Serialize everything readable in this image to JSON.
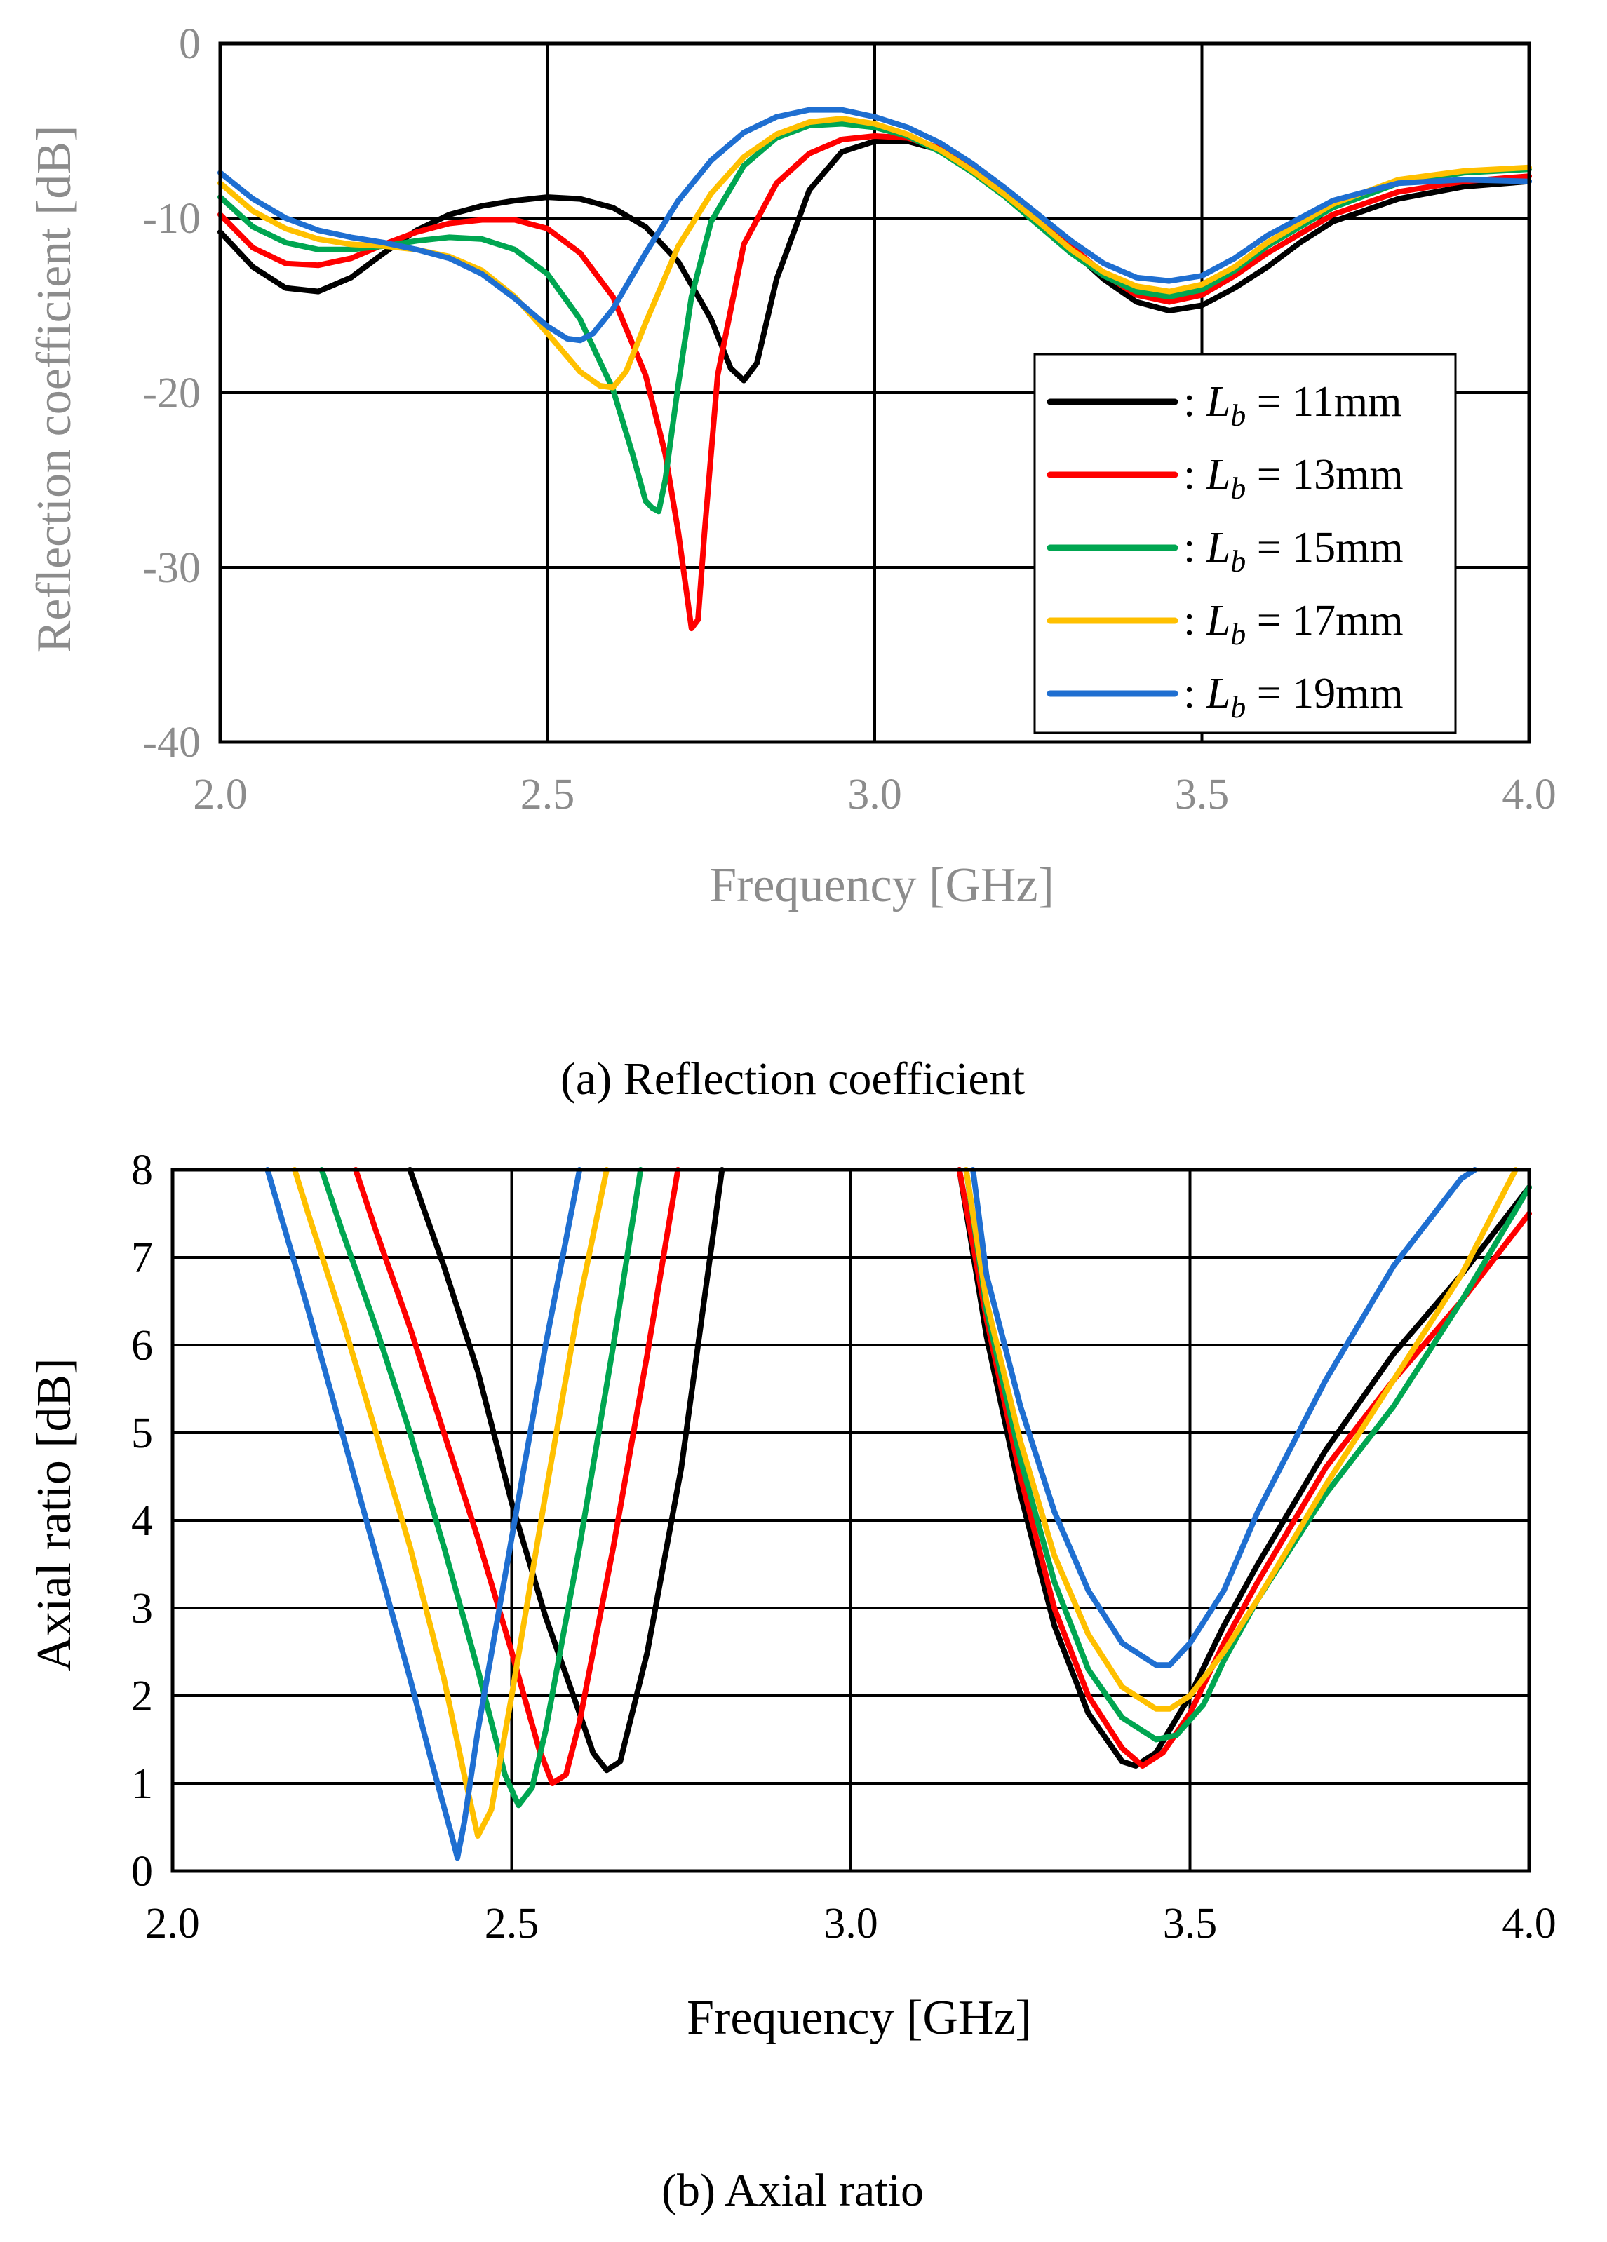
{
  "chart_data": [
    {
      "type": "line",
      "caption": "(a) Reflection coefficient",
      "xlabel": "Frequency [GHz]",
      "ylabel": "Reflection coefficient [dB]",
      "xlim": [
        2.0,
        4.0
      ],
      "ylim": [
        -40,
        0
      ],
      "xticks": [
        "2.0",
        "2.5",
        "3.0",
        "3.5",
        "4.0"
      ],
      "yticks": [
        "0",
        "-10",
        "-20",
        "-30",
        "-40"
      ],
      "grid": true,
      "legend": "bottom-right",
      "series": [
        {
          "name": ": Lb = 11mm",
          "legend": {
            "prefix": ": ",
            "var": "L",
            "sub": "b",
            "suffix": " = 11mm"
          },
          "color": "#000000",
          "x": [
            2.0,
            2.05,
            2.1,
            2.15,
            2.2,
            2.25,
            2.3,
            2.35,
            2.4,
            2.45,
            2.5,
            2.55,
            2.6,
            2.65,
            2.7,
            2.75,
            2.78,
            2.8,
            2.82,
            2.85,
            2.9,
            2.95,
            3.0,
            3.05,
            3.1,
            3.15,
            3.2,
            3.25,
            3.3,
            3.35,
            3.4,
            3.45,
            3.5,
            3.55,
            3.6,
            3.65,
            3.7,
            3.8,
            3.9,
            4.0
          ],
          "y": [
            -10.8,
            -12.8,
            -14.0,
            -14.2,
            -13.4,
            -12.0,
            -10.7,
            -9.8,
            -9.3,
            -9.0,
            -8.8,
            -8.9,
            -9.4,
            -10.5,
            -12.5,
            -15.8,
            -18.6,
            -19.3,
            -18.3,
            -13.5,
            -8.4,
            -6.2,
            -5.6,
            -5.6,
            -6.1,
            -7.2,
            -8.6,
            -10.1,
            -11.8,
            -13.5,
            -14.8,
            -15.3,
            -15.0,
            -14.0,
            -12.8,
            -11.4,
            -10.2,
            -8.9,
            -8.2,
            -7.9
          ]
        },
        {
          "name": ": Lb = 13mm",
          "legend": {
            "prefix": ": ",
            "var": "L",
            "sub": "b",
            "suffix": " = 13mm"
          },
          "color": "#ff0000",
          "x": [
            2.0,
            2.05,
            2.1,
            2.15,
            2.2,
            2.25,
            2.3,
            2.35,
            2.4,
            2.45,
            2.5,
            2.55,
            2.6,
            2.65,
            2.68,
            2.7,
            2.72,
            2.73,
            2.74,
            2.76,
            2.8,
            2.85,
            2.9,
            2.95,
            3.0,
            3.05,
            3.1,
            3.15,
            3.2,
            3.25,
            3.3,
            3.35,
            3.4,
            3.45,
            3.5,
            3.55,
            3.6,
            3.7,
            3.8,
            3.9,
            4.0
          ],
          "y": [
            -9.8,
            -11.7,
            -12.6,
            -12.7,
            -12.3,
            -11.5,
            -10.8,
            -10.3,
            -10.1,
            -10.1,
            -10.6,
            -12.0,
            -14.5,
            -19.0,
            -23.5,
            -28.0,
            -33.5,
            -33.0,
            -28.0,
            -19.0,
            -11.5,
            -8.0,
            -6.3,
            -5.5,
            -5.3,
            -5.4,
            -6.0,
            -7.1,
            -8.5,
            -10.0,
            -11.6,
            -13.2,
            -14.4,
            -14.8,
            -14.4,
            -13.3,
            -12.0,
            -9.8,
            -8.5,
            -7.9,
            -7.6
          ]
        },
        {
          "name": ": Lb = 15mm",
          "legend": {
            "prefix": ": ",
            "var": "L",
            "sub": "b",
            "suffix": " = 15mm"
          },
          "color": "#00a651",
          "x": [
            2.0,
            2.05,
            2.1,
            2.15,
            2.2,
            2.25,
            2.3,
            2.35,
            2.4,
            2.45,
            2.5,
            2.55,
            2.6,
            2.63,
            2.65,
            2.66,
            2.67,
            2.68,
            2.7,
            2.72,
            2.75,
            2.8,
            2.85,
            2.9,
            2.95,
            3.0,
            3.05,
            3.1,
            3.15,
            3.2,
            3.25,
            3.3,
            3.35,
            3.4,
            3.45,
            3.5,
            3.55,
            3.6,
            3.7,
            3.8,
            3.9,
            4.0
          ],
          "y": [
            -8.8,
            -10.5,
            -11.4,
            -11.8,
            -11.8,
            -11.6,
            -11.3,
            -11.1,
            -11.2,
            -11.8,
            -13.2,
            -15.8,
            -19.8,
            -23.5,
            -26.2,
            -26.6,
            -26.8,
            -25.0,
            -19.5,
            -14.5,
            -10.2,
            -7.0,
            -5.4,
            -4.7,
            -4.6,
            -4.8,
            -5.3,
            -6.2,
            -7.4,
            -8.8,
            -10.4,
            -12.0,
            -13.3,
            -14.2,
            -14.5,
            -14.1,
            -13.0,
            -11.6,
            -9.4,
            -8.0,
            -7.4,
            -7.2
          ]
        },
        {
          "name": ": Lb = 17mm",
          "legend": {
            "prefix": ": ",
            "var": "L",
            "sub": "b",
            "suffix": " = 17mm"
          },
          "color": "#ffc000",
          "x": [
            2.0,
            2.05,
            2.1,
            2.15,
            2.2,
            2.25,
            2.3,
            2.35,
            2.4,
            2.45,
            2.5,
            2.55,
            2.58,
            2.6,
            2.62,
            2.65,
            2.7,
            2.75,
            2.8,
            2.85,
            2.9,
            2.95,
            3.0,
            3.05,
            3.1,
            3.15,
            3.2,
            3.25,
            3.3,
            3.35,
            3.4,
            3.45,
            3.5,
            3.55,
            3.6,
            3.7,
            3.8,
            3.9,
            4.0
          ],
          "y": [
            -8.0,
            -9.6,
            -10.6,
            -11.2,
            -11.5,
            -11.6,
            -11.8,
            -12.2,
            -13.0,
            -14.5,
            -16.6,
            -18.8,
            -19.6,
            -19.7,
            -18.8,
            -16.0,
            -11.6,
            -8.6,
            -6.5,
            -5.2,
            -4.5,
            -4.3,
            -4.6,
            -5.2,
            -6.1,
            -7.3,
            -8.7,
            -10.2,
            -11.8,
            -13.1,
            -13.9,
            -14.2,
            -13.8,
            -12.8,
            -11.4,
            -9.2,
            -7.8,
            -7.3,
            -7.1
          ]
        },
        {
          "name": ": Lb = 19mm",
          "legend": {
            "prefix": ": ",
            "var": "L",
            "sub": "b",
            "suffix": " = 19mm"
          },
          "color": "#1f6fd1",
          "x": [
            2.0,
            2.05,
            2.1,
            2.15,
            2.2,
            2.25,
            2.3,
            2.35,
            2.4,
            2.45,
            2.5,
            2.53,
            2.55,
            2.57,
            2.6,
            2.65,
            2.7,
            2.75,
            2.8,
            2.85,
            2.9,
            2.95,
            3.0,
            3.05,
            3.1,
            3.15,
            3.2,
            3.25,
            3.3,
            3.35,
            3.4,
            3.45,
            3.5,
            3.55,
            3.6,
            3.7,
            3.8,
            3.9,
            4.0
          ],
          "y": [
            -7.4,
            -8.9,
            -10.0,
            -10.7,
            -11.1,
            -11.4,
            -11.8,
            -12.3,
            -13.2,
            -14.6,
            -16.2,
            -16.9,
            -17.0,
            -16.6,
            -15.2,
            -12.0,
            -9.0,
            -6.7,
            -5.1,
            -4.2,
            -3.8,
            -3.8,
            -4.2,
            -4.8,
            -5.7,
            -6.9,
            -8.3,
            -9.8,
            -11.3,
            -12.6,
            -13.4,
            -13.6,
            -13.3,
            -12.3,
            -11.0,
            -9.0,
            -8.0,
            -7.8,
            -7.9
          ]
        }
      ]
    },
    {
      "type": "line",
      "caption": "(b) Axial ratio",
      "xlabel": "Frequency [GHz]",
      "ylabel": "Axial ratio [dB]",
      "xlim": [
        2.0,
        4.0
      ],
      "ylim": [
        0,
        8
      ],
      "xticks": [
        "2.0",
        "2.5",
        "3.0",
        "3.5",
        "4.0"
      ],
      "yticks": [
        "0",
        "1",
        "2",
        "3",
        "4",
        "5",
        "6",
        "7",
        "8"
      ],
      "grid": true,
      "series": [
        {
          "name": "Lb = 11mm",
          "color": "#000000",
          "x": [
            2.35,
            2.4,
            2.45,
            2.5,
            2.55,
            2.6,
            2.62,
            2.64,
            2.66,
            2.7,
            2.75,
            2.78,
            2.81,
            null,
            3.16,
            3.2,
            3.25,
            3.3,
            3.35,
            3.4,
            3.42,
            3.45,
            3.5,
            3.55,
            3.6,
            3.7,
            3.8,
            3.9,
            4.0
          ],
          "y": [
            8.0,
            6.9,
            5.7,
            4.2,
            2.9,
            1.8,
            1.35,
            1.15,
            1.25,
            2.5,
            4.6,
            6.3,
            8.0,
            null,
            8.0,
            6.1,
            4.3,
            2.8,
            1.8,
            1.25,
            1.2,
            1.35,
            2.0,
            2.8,
            3.5,
            4.8,
            5.9,
            6.8,
            7.8
          ]
        },
        {
          "name": "Lb = 13mm",
          "color": "#ff0000",
          "x": [
            2.27,
            2.3,
            2.35,
            2.4,
            2.45,
            2.5,
            2.54,
            2.56,
            2.58,
            2.6,
            2.65,
            2.7,
            2.745,
            null,
            3.16,
            3.2,
            3.25,
            3.3,
            3.35,
            3.4,
            3.43,
            3.46,
            3.5,
            3.55,
            3.6,
            3.7,
            3.8,
            3.9,
            4.0
          ],
          "y": [
            8.0,
            7.3,
            6.2,
            5.0,
            3.8,
            2.5,
            1.4,
            1.0,
            1.1,
            1.7,
            3.7,
            5.9,
            8.0,
            null,
            8.0,
            6.3,
            4.5,
            3.0,
            2.0,
            1.4,
            1.2,
            1.35,
            1.8,
            2.6,
            3.3,
            4.6,
            5.6,
            6.5,
            7.5
          ]
        },
        {
          "name": "Lb = 15mm",
          "color": "#00a651",
          "x": [
            2.22,
            2.25,
            2.3,
            2.35,
            2.4,
            2.45,
            2.49,
            2.51,
            2.53,
            2.55,
            2.6,
            2.65,
            2.69,
            null,
            3.17,
            3.2,
            3.25,
            3.3,
            3.35,
            3.4,
            3.45,
            3.48,
            3.52,
            3.55,
            3.6,
            3.7,
            3.8,
            3.9,
            4.0
          ],
          "y": [
            8.0,
            7.3,
            6.2,
            5.0,
            3.7,
            2.3,
            1.1,
            0.75,
            0.95,
            1.6,
            3.7,
            6.0,
            8.0,
            null,
            8.0,
            6.4,
            4.7,
            3.3,
            2.3,
            1.75,
            1.5,
            1.55,
            1.9,
            2.4,
            3.1,
            4.3,
            5.3,
            6.5,
            7.8
          ]
        },
        {
          "name": "Lb = 17mm",
          "color": "#ffc000",
          "x": [
            2.18,
            2.2,
            2.25,
            2.3,
            2.35,
            2.4,
            2.43,
            2.45,
            2.47,
            2.5,
            2.55,
            2.6,
            2.64,
            null,
            3.17,
            3.2,
            3.25,
            3.3,
            3.35,
            3.4,
            3.45,
            3.47,
            3.5,
            3.55,
            3.6,
            3.7,
            3.8,
            3.9,
            3.98
          ],
          "y": [
            8.0,
            7.5,
            6.3,
            5.0,
            3.7,
            2.2,
            1.1,
            0.4,
            0.7,
            2.0,
            4.3,
            6.5,
            8.0,
            null,
            8.0,
            6.5,
            4.9,
            3.6,
            2.7,
            2.1,
            1.85,
            1.85,
            2.0,
            2.5,
            3.1,
            4.4,
            5.6,
            6.8,
            8.0
          ]
        },
        {
          "name": "Lb = 19mm",
          "color": "#1f6fd1",
          "x": [
            2.14,
            2.2,
            2.25,
            2.3,
            2.35,
            2.38,
            2.41,
            2.42,
            2.43,
            2.45,
            2.5,
            2.55,
            2.6,
            null,
            3.18,
            3.2,
            3.25,
            3.3,
            3.35,
            3.4,
            3.45,
            3.47,
            3.5,
            3.55,
            3.6,
            3.7,
            3.8,
            3.9,
            3.92
          ],
          "y": [
            8.0,
            6.4,
            5.0,
            3.6,
            2.2,
            1.3,
            0.45,
            0.15,
            0.55,
            1.6,
            3.8,
            6.0,
            8.0,
            null,
            8.0,
            6.8,
            5.3,
            4.1,
            3.2,
            2.6,
            2.35,
            2.35,
            2.6,
            3.2,
            4.1,
            5.6,
            6.9,
            7.9,
            8.0
          ]
        }
      ]
    }
  ]
}
